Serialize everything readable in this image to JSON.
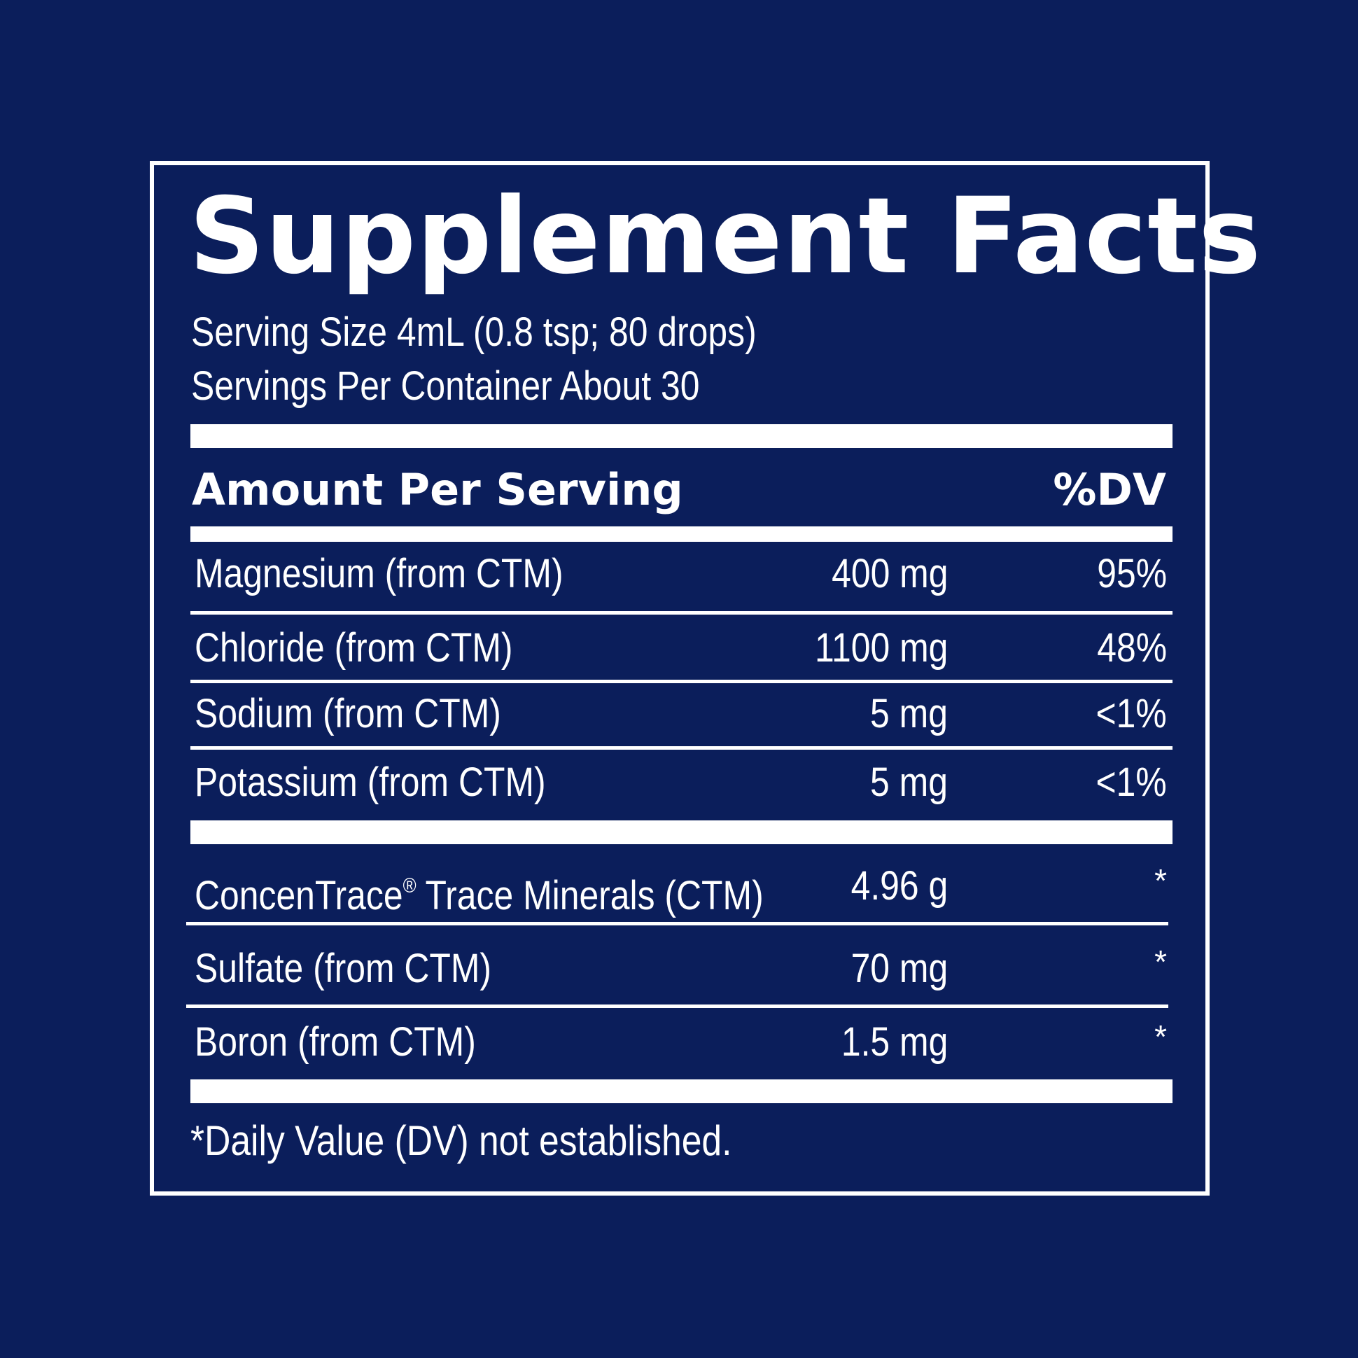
{
  "label": {
    "title": "Supplement Facts",
    "serving_size": "Serving Size 4mL (0.8 tsp; 80 drops)",
    "servings_per_container": "Servings Per Container About 30",
    "header_amount": "Amount Per Serving",
    "header_dv": "%DV",
    "nutrients": [
      {
        "name": "Magnesium (from CTM)",
        "amount": "400 mg",
        "dv": "95%"
      },
      {
        "name": "Chloride (from CTM)",
        "amount": "1100 mg",
        "dv": "48%"
      },
      {
        "name": "Sodium (from CTM)",
        "amount": "5 mg",
        "dv": "<1%"
      },
      {
        "name": "Potassium (from CTM)",
        "amount": "5 mg",
        "dv": "<1%"
      }
    ],
    "other_ingredients": [
      {
        "name": "ConcenTrace",
        "name_mark": "®",
        "name_suffix": " Trace Minerals (CTM)",
        "amount": "4.96 g",
        "dv": "*"
      },
      {
        "name": "Sulfate (from CTM)",
        "amount": "70 mg",
        "dv": "*"
      },
      {
        "name": "Boron (from CTM)",
        "amount": "1.5 mg",
        "dv": "*"
      }
    ],
    "footnote": "*Daily Value (DV) not established."
  },
  "colors": {
    "background": "#0b1e5b",
    "foreground": "#ffffff"
  }
}
